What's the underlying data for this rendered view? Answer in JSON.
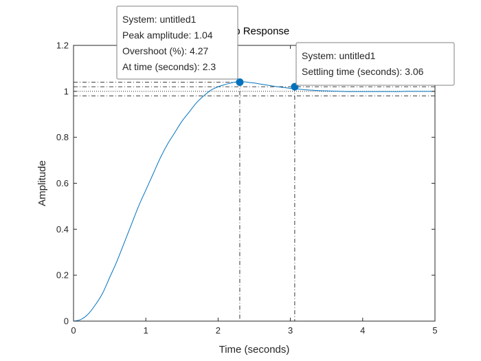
{
  "chart_data": {
    "type": "line",
    "title": "Step Response",
    "xlabel": "Time (seconds)",
    "ylabel": "Amplitude",
    "xlim": [
      0,
      5
    ],
    "ylim": [
      0,
      1.2
    ],
    "xticks": [
      0,
      1,
      2,
      3,
      4,
      5
    ],
    "yticks": [
      0,
      0.2,
      0.4,
      0.6,
      0.8,
      1,
      1.2
    ],
    "xtick_labels": [
      "0",
      "1",
      "2",
      "3",
      "4",
      "5"
    ],
    "ytick_labels": [
      "0",
      "0.2",
      "0.4",
      "0.6",
      "0.8",
      "1",
      "1.2"
    ],
    "grid": false,
    "series": [
      {
        "name": "untitled1",
        "color": "#0072BD",
        "x": [
          0,
          0.1,
          0.2,
          0.3,
          0.4,
          0.5,
          0.6,
          0.7,
          0.8,
          0.9,
          1.0,
          1.1,
          1.2,
          1.3,
          1.4,
          1.5,
          1.6,
          1.7,
          1.8,
          1.9,
          2.0,
          2.1,
          2.2,
          2.3,
          2.4,
          2.5,
          2.6,
          2.7,
          2.8,
          2.9,
          3.0,
          3.1,
          3.2,
          3.3,
          3.4,
          3.5,
          3.6,
          3.7,
          3.8,
          3.9,
          4.0,
          4.1,
          4.2,
          4.3,
          4.4,
          4.5,
          4.6,
          4.7,
          4.8,
          4.9,
          5.0
        ],
        "y": [
          0,
          0.007,
          0.03,
          0.07,
          0.12,
          0.19,
          0.26,
          0.34,
          0.42,
          0.5,
          0.57,
          0.64,
          0.71,
          0.77,
          0.82,
          0.87,
          0.91,
          0.95,
          0.98,
          1.005,
          1.02,
          1.03,
          1.038,
          1.042,
          1.04,
          1.036,
          1.031,
          1.026,
          1.021,
          1.017,
          1.013,
          1.01,
          1.007,
          1.005,
          1.003,
          1.002,
          1.001,
          1.0,
          0.999,
          0.999,
          0.999,
          0.999,
          0.999,
          0.999,
          0.999,
          0.999,
          1.0,
          1.0,
          1.0,
          1.0,
          1.0
        ]
      }
    ],
    "settling_band": [
      0.98,
      1.02
    ],
    "final_value": 1.0,
    "peak": {
      "time": 2.3,
      "amplitude": 1.04
    },
    "settling": {
      "time": 3.06,
      "amplitude": 1.02
    },
    "annotations": [
      {
        "id": "peak",
        "lines": [
          "System: untitled1",
          "Peak amplitude: 1.04",
          "Overshoot (%): 4.27",
          "At time (seconds): 2.3"
        ]
      },
      {
        "id": "settling",
        "lines": [
          "System: untitled1",
          "Settling time (seconds): 3.06"
        ]
      }
    ]
  }
}
